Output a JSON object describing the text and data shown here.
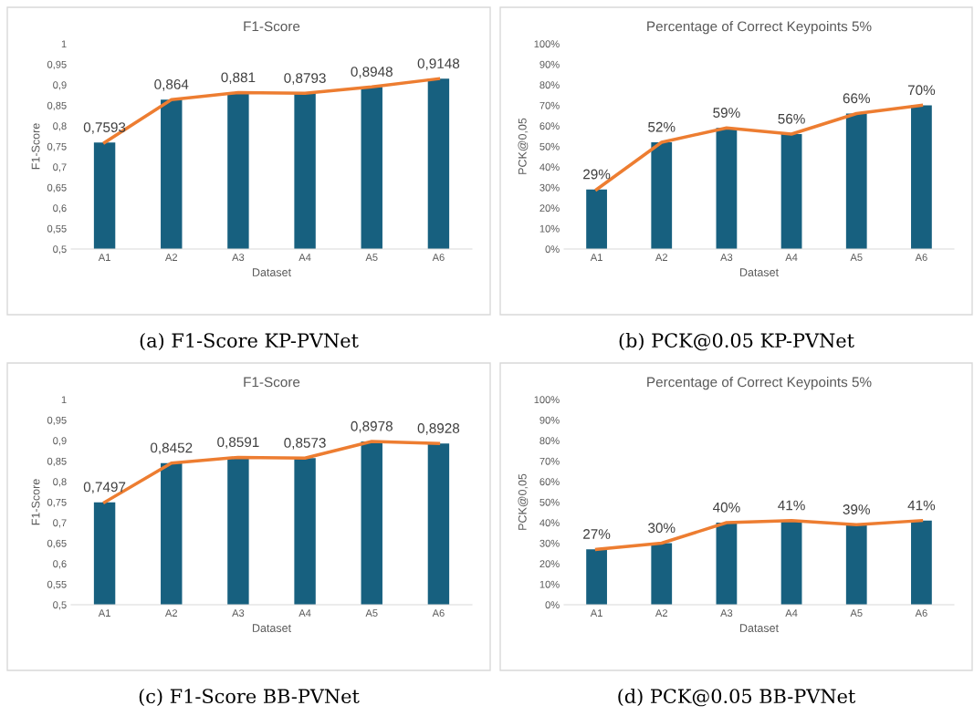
{
  "chart_data": [
    {
      "type": "bar",
      "title": "F1-Score",
      "xlabel": "Dataset",
      "ylabel": "F1-Score",
      "categories": [
        "A1",
        "A2",
        "A3",
        "A4",
        "A5",
        "A6"
      ],
      "series": [
        {
          "color": "#17607f",
          "values": [
            0.7593,
            0.864,
            0.881,
            0.8793,
            0.8948,
            0.9148
          ],
          "value_labels": [
            "0,7593",
            "0,864",
            "0,881",
            "0,8793",
            "0,8948",
            "0,9148"
          ]
        },
        {
          "type": "line",
          "color": "#ed7d31",
          "values": [
            0.7593,
            0.864,
            0.881,
            0.8793,
            0.8948,
            0.9148
          ]
        }
      ],
      "ylim": [
        0.5,
        1
      ],
      "yticks": [
        {
          "value": 0.5,
          "label": "0,5"
        },
        {
          "value": 0.55,
          "label": "0,55"
        },
        {
          "value": 0.6,
          "label": "0,6"
        },
        {
          "value": 0.65,
          "label": "0,65"
        },
        {
          "value": 0.7,
          "label": "0,7"
        },
        {
          "value": 0.75,
          "label": "0,75"
        },
        {
          "value": 0.8,
          "label": "0,8"
        },
        {
          "value": 0.85,
          "label": "0,85"
        },
        {
          "value": 0.9,
          "label": "0,9"
        },
        {
          "value": 0.95,
          "label": "0,95"
        },
        {
          "value": 1,
          "label": "1"
        }
      ],
      "marker": "none",
      "line_style": "solid",
      "grid": false,
      "legend": false,
      "annotations": [
        "(a) F1-Score KP-PVNet"
      ]
    },
    {
      "type": "bar",
      "title": "Percentage of Correct Keypoints 5%",
      "xlabel": "Dataset",
      "ylabel": "PCK@0,05",
      "categories": [
        "A1",
        "A2",
        "A3",
        "A4",
        "A5",
        "A6"
      ],
      "series": [
        {
          "color": "#17607f",
          "values": [
            29,
            52,
            59,
            56,
            66,
            70
          ],
          "value_labels": [
            "29%",
            "52%",
            "59%",
            "56%",
            "66%",
            "70%"
          ]
        },
        {
          "type": "line",
          "color": "#ed7d31",
          "values": [
            29,
            52,
            59,
            56,
            66,
            70
          ]
        }
      ],
      "ylim": [
        0,
        100
      ],
      "yticks": [
        {
          "value": 0,
          "label": "0%"
        },
        {
          "value": 10,
          "label": "10%"
        },
        {
          "value": 20,
          "label": "20%"
        },
        {
          "value": 30,
          "label": "30%"
        },
        {
          "value": 40,
          "label": "40%"
        },
        {
          "value": 50,
          "label": "50%"
        },
        {
          "value": 60,
          "label": "60%"
        },
        {
          "value": 70,
          "label": "70%"
        },
        {
          "value": 80,
          "label": "80%"
        },
        {
          "value": 90,
          "label": "90%"
        },
        {
          "value": 100,
          "label": "100%"
        }
      ],
      "marker": "none",
      "line_style": "solid",
      "grid": false,
      "legend": false,
      "annotations": [
        "(b) PCK@0.05 KP-PVNet"
      ]
    },
    {
      "type": "bar",
      "title": "F1-Score",
      "xlabel": "Dataset",
      "ylabel": "F1-Score",
      "categories": [
        "A1",
        "A2",
        "A3",
        "A4",
        "A5",
        "A6"
      ],
      "series": [
        {
          "color": "#17607f",
          "values": [
            0.7497,
            0.8452,
            0.8591,
            0.8573,
            0.8978,
            0.8928
          ],
          "value_labels": [
            "0,7497",
            "0,8452",
            "0,8591",
            "0,8573",
            "0,8978",
            "0,8928"
          ]
        },
        {
          "type": "line",
          "color": "#ed7d31",
          "values": [
            0.7497,
            0.8452,
            0.8591,
            0.8573,
            0.8978,
            0.8928
          ]
        }
      ],
      "ylim": [
        0.5,
        1
      ],
      "yticks": [
        {
          "value": 0.5,
          "label": "0,5"
        },
        {
          "value": 0.55,
          "label": "0,55"
        },
        {
          "value": 0.6,
          "label": "0,6"
        },
        {
          "value": 0.65,
          "label": "0,65"
        },
        {
          "value": 0.7,
          "label": "0,7"
        },
        {
          "value": 0.75,
          "label": "0,75"
        },
        {
          "value": 0.8,
          "label": "0,8"
        },
        {
          "value": 0.85,
          "label": "0,85"
        },
        {
          "value": 0.9,
          "label": "0,9"
        },
        {
          "value": 0.95,
          "label": "0,95"
        },
        {
          "value": 1,
          "label": "1"
        }
      ],
      "marker": "none",
      "line_style": "solid",
      "grid": false,
      "legend": false,
      "annotations": [
        "(c) F1-Score BB-PVNet"
      ]
    },
    {
      "type": "bar",
      "title": "Percentage of Correct Keypoints 5%",
      "xlabel": "Dataset",
      "ylabel": "PCK@0,05",
      "categories": [
        "A1",
        "A2",
        "A3",
        "A4",
        "A5",
        "A6"
      ],
      "series": [
        {
          "color": "#17607f",
          "values": [
            27,
            30,
            40,
            41,
            39,
            41
          ],
          "value_labels": [
            "27%",
            "30%",
            "40%",
            "41%",
            "39%",
            "41%"
          ]
        },
        {
          "type": "line",
          "color": "#ed7d31",
          "values": [
            27,
            30,
            40,
            41,
            39,
            41
          ]
        }
      ],
      "ylim": [
        0,
        100
      ],
      "yticks": [
        {
          "value": 0,
          "label": "0%"
        },
        {
          "value": 10,
          "label": "10%"
        },
        {
          "value": 20,
          "label": "20%"
        },
        {
          "value": 30,
          "label": "30%"
        },
        {
          "value": 40,
          "label": "40%"
        },
        {
          "value": 50,
          "label": "50%"
        },
        {
          "value": 60,
          "label": "60%"
        },
        {
          "value": 70,
          "label": "70%"
        },
        {
          "value": 80,
          "label": "80%"
        },
        {
          "value": 90,
          "label": "90%"
        },
        {
          "value": 100,
          "label": "100%"
        }
      ],
      "marker": "none",
      "line_style": "solid",
      "grid": false,
      "legend": false,
      "annotations": [
        "(d) PCK@0.05 BB-PVNet"
      ]
    }
  ]
}
